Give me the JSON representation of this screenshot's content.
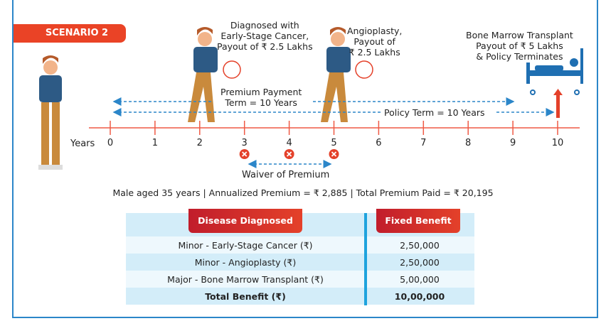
{
  "scenario_label": "SCENARIO 2",
  "events": {
    "cancer": [
      "Diagnosed with",
      "Early-Stage Cancer,",
      "Payout of ₹ 2.5 Lakhs"
    ],
    "angioplasty": [
      "Angioplasty,",
      "Payout of",
      "₹ 2.5 Lakhs"
    ],
    "bmt": [
      "Bone Marrow Transplant",
      "Payout of ₹ 5 Lakhs",
      "& Policy Terminates"
    ]
  },
  "premium_term": [
    "Premium Payment",
    "Term = 10 Years"
  ],
  "policy_term": "Policy Term = 10 Years",
  "axis_label": "Years",
  "years": [
    "0",
    "1",
    "2",
    "3",
    "4",
    "5",
    "6",
    "7",
    "8",
    "9",
    "10"
  ],
  "waived_years": [
    3,
    4,
    5
  ],
  "waiver_label": "Waiver of Premium",
  "summary": "Male aged 35 years | Annualized Premium = ₹ 2,885 | Total Premium Paid = ₹ 20,195",
  "table": {
    "headers": [
      "Disease Diagnosed",
      "Fixed Benefit"
    ],
    "rows": [
      [
        "Minor - Early-Stage Cancer (₹)",
        "2,50,000"
      ],
      [
        "Minor - Angioplasty (₹)",
        "2,50,000"
      ],
      [
        "Major - Bone Marrow Transplant (₹)",
        "5,00,000"
      ]
    ],
    "total": [
      "Total Benefit (₹)",
      "10,00,000"
    ]
  },
  "colors": {
    "accent": "#ea4326",
    "blue": "#2b86c9",
    "axis": "#ef5a45"
  }
}
